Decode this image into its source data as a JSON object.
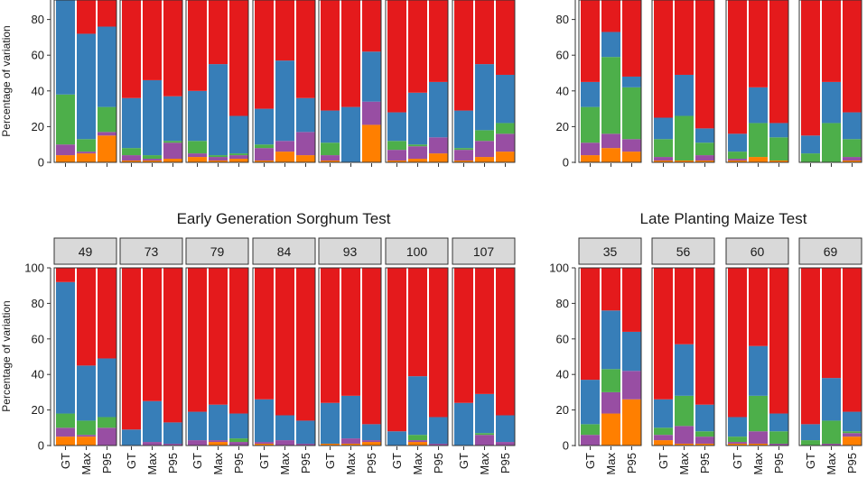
{
  "colors": {
    "Residual": "#e41a1c",
    "Genotype": "#377eb8",
    "GxE": "#4daf4a",
    "Location": "#984ea3",
    "Replicate": "#ff7f00",
    "strip_bg": "#d9d9d9",
    "axis": "#333333"
  },
  "chart_data": [
    {
      "type": "bar",
      "stacked": true,
      "title": "",
      "ylabel": "Percentage of variation",
      "ylim": [
        0,
        100
      ],
      "yticks": [
        0,
        20,
        40,
        60,
        80
      ],
      "categories": [
        "GT",
        "Max",
        "P95"
      ],
      "stack_order": [
        "Replicate",
        "Location",
        "GxE",
        "Genotype",
        "Residual"
      ],
      "panels": [
        {
          "bars": [
            [
              4,
              6,
              28,
              60,
              2
            ],
            [
              5,
              1,
              7,
              59,
              28
            ],
            [
              15,
              2,
              14,
              45,
              24
            ]
          ]
        },
        {
          "bars": [
            [
              1,
              3,
              4,
              28,
              64
            ],
            [
              1,
              1,
              2,
              42,
              54
            ],
            [
              2,
              9,
              1,
              25,
              63
            ]
          ]
        },
        {
          "bars": [
            [
              3,
              2,
              7,
              28,
              60
            ],
            [
              1,
              2,
              1,
              51,
              45
            ],
            [
              2,
              2,
              1,
              21,
              74
            ]
          ]
        },
        {
          "bars": [
            [
              1,
              7,
              2,
              20,
              70
            ],
            [
              6,
              6,
              0,
              45,
              43
            ],
            [
              4,
              13,
              0,
              19,
              64
            ]
          ]
        },
        {
          "bars": [
            [
              1,
              3,
              7,
              18,
              71
            ],
            [
              0,
              0,
              0,
              31,
              69
            ],
            [
              21,
              13,
              0,
              28,
              38
            ]
          ]
        },
        {
          "bars": [
            [
              1,
              6,
              5,
              16,
              72
            ],
            [
              2,
              7,
              1,
              29,
              61
            ],
            [
              5,
              9,
              0,
              31,
              55
            ]
          ]
        },
        {
          "bars": [
            [
              1,
              6,
              1,
              21,
              71
            ],
            [
              3,
              9,
              6,
              37,
              45
            ],
            [
              6,
              10,
              6,
              27,
              51
            ]
          ]
        }
      ]
    },
    {
      "type": "bar",
      "stacked": true,
      "title": "",
      "ylim": [
        0,
        100
      ],
      "yticks": [
        0,
        20,
        40,
        60,
        80
      ],
      "categories": [
        "GT",
        "Max",
        "P95"
      ],
      "stack_order": [
        "Replicate",
        "Location",
        "GxE",
        "Genotype",
        "Residual"
      ],
      "panels": [
        {
          "bars": [
            [
              4,
              7,
              20,
              14,
              55
            ],
            [
              8,
              8,
              43,
              14,
              27
            ],
            [
              6,
              7,
              29,
              6,
              52
            ]
          ]
        },
        {
          "bars": [
            [
              1,
              2,
              10,
              12,
              75
            ],
            [
              1,
              0,
              25,
              23,
              51
            ],
            [
              1,
              3,
              7,
              8,
              81
            ]
          ]
        },
        {
          "bars": [
            [
              1,
              1,
              4,
              10,
              84
            ],
            [
              3,
              0,
              19,
              20,
              58
            ],
            [
              1,
              0,
              13,
              8,
              78
            ]
          ]
        },
        {
          "bars": [
            [
              0,
              0,
              5,
              10,
              85
            ],
            [
              0,
              0,
              22,
              23,
              55
            ],
            [
              1,
              2,
              10,
              15,
              72
            ]
          ]
        }
      ]
    },
    {
      "type": "bar",
      "stacked": true,
      "title": "Early Generation Sorghum Test",
      "xlabel": "",
      "ylabel": "Percentage of variation",
      "ylim": [
        0,
        100
      ],
      "yticks": [
        0,
        20,
        40,
        60,
        80,
        100
      ],
      "categories": [
        "GT",
        "Max",
        "P95"
      ],
      "stack_order": [
        "Replicate",
        "Location",
        "GxE",
        "Genotype",
        "Residual"
      ],
      "panels": [
        {
          "label": "49",
          "bars": [
            [
              5,
              5,
              8,
              74,
              8
            ],
            [
              5,
              1,
              8,
              31,
              55
            ],
            [
              0,
              10,
              6,
              33,
              51
            ]
          ]
        },
        {
          "label": "73",
          "bars": [
            [
              0,
              0,
              0,
              9,
              91
            ],
            [
              0,
              2,
              0,
              23,
              75
            ],
            [
              0,
              1,
              0,
              12,
              87
            ]
          ]
        },
        {
          "label": "79",
          "bars": [
            [
              0,
              3,
              0,
              16,
              81
            ],
            [
              2,
              1,
              0,
              20,
              77
            ],
            [
              0,
              2,
              2,
              14,
              82
            ]
          ]
        },
        {
          "label": "84",
          "bars": [
            [
              1,
              1,
              0,
              24,
              74
            ],
            [
              0,
              3,
              0,
              14,
              83
            ],
            [
              0,
              1,
              0,
              13,
              86
            ]
          ]
        },
        {
          "label": "93",
          "bars": [
            [
              1,
              0,
              0,
              23,
              76
            ],
            [
              1,
              3,
              0,
              24,
              72
            ],
            [
              2,
              1,
              0,
              9,
              88
            ]
          ]
        },
        {
          "label": "100",
          "bars": [
            [
              0,
              0,
              0,
              8,
              92
            ],
            [
              2,
              1,
              3,
              33,
              61
            ],
            [
              0,
              1,
              0,
              15,
              84
            ]
          ]
        },
        {
          "label": "107",
          "bars": [
            [
              0,
              0,
              0,
              24,
              76
            ],
            [
              0,
              6,
              1,
              22,
              71
            ],
            [
              0,
              2,
              0,
              15,
              83
            ]
          ]
        }
      ]
    },
    {
      "type": "bar",
      "stacked": true,
      "title": "Late Planting Maize Test",
      "xlabel": "",
      "ylim": [
        0,
        100
      ],
      "yticks": [
        0,
        20,
        40,
        60,
        80,
        100
      ],
      "categories": [
        "GT",
        "Max",
        "P95"
      ],
      "stack_order": [
        "Replicate",
        "Location",
        "GxE",
        "Genotype",
        "Residual"
      ],
      "panels": [
        {
          "label": "35",
          "bars": [
            [
              0,
              6,
              6,
              25,
              63
            ],
            [
              18,
              12,
              13,
              33,
              24
            ],
            [
              26,
              16,
              0,
              22,
              36
            ]
          ]
        },
        {
          "label": "56",
          "bars": [
            [
              3,
              3,
              4,
              16,
              74
            ],
            [
              1,
              10,
              17,
              29,
              43
            ],
            [
              1,
              4,
              3,
              15,
              77
            ]
          ]
        },
        {
          "label": "60",
          "bars": [
            [
              1,
              1,
              3,
              11,
              84
            ],
            [
              1,
              7,
              20,
              28,
              44
            ],
            [
              0,
              1,
              7,
              10,
              82
            ]
          ]
        },
        {
          "label": "69",
          "bars": [
            [
              0,
              0,
              3,
              9,
              88
            ],
            [
              0,
              1,
              13,
              24,
              62
            ],
            [
              5,
              2,
              1,
              11,
              81
            ]
          ]
        }
      ]
    }
  ]
}
